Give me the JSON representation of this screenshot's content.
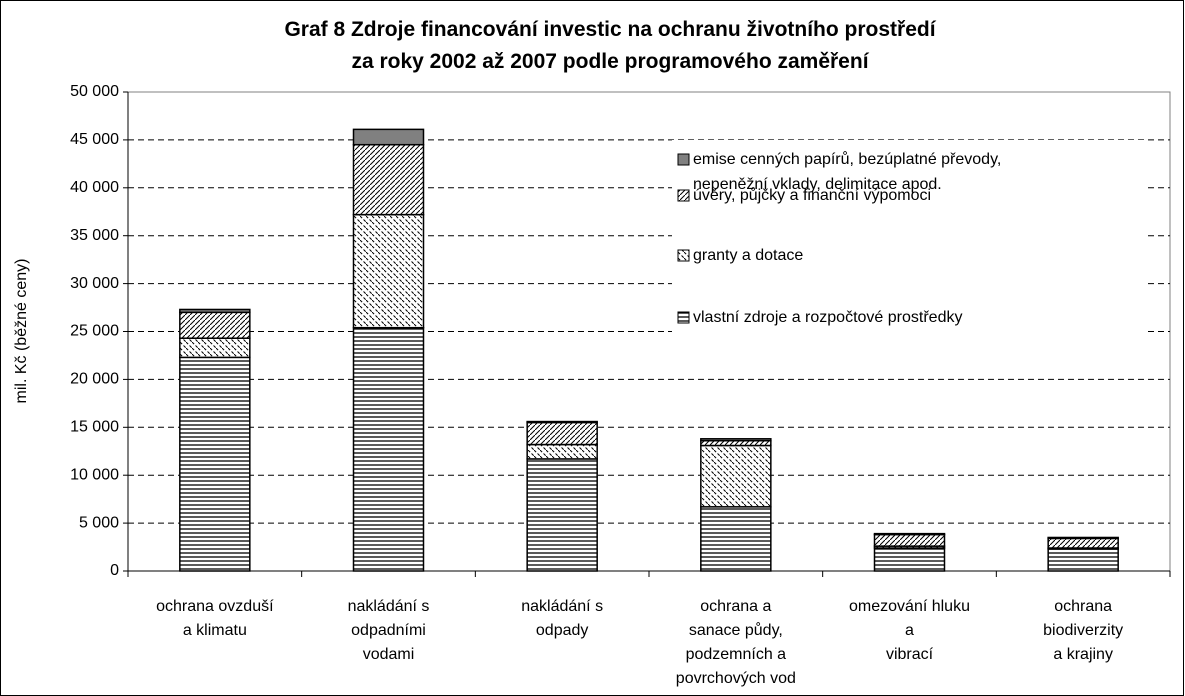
{
  "chart_data": {
    "type": "stacked_bar",
    "title": "Graf 8 Zdroje financování investic na ochranu životního prostředí\nza roky 2002 až 2007 podle programového zaměření",
    "y_label": "mil. Kč (běžné ceny)",
    "categories": [
      "ochrana ovzduší\na klimatu",
      "nakládání s\nodpadními\nvodami",
      "nakládání s\nodpady",
      "ochrana a\nsanace půdy,\npodzemních a\npovrchových vod",
      "omezování hluku\na\nvibrací",
      "ochrana\nbiodiverzity\na krajiny"
    ],
    "series": [
      {
        "name": "vlastní zdroje a rozpočtové prostředky",
        "color": "#000000",
        "pattern": "horizontal",
        "values": [
          22300,
          25400,
          11700,
          6700,
          2400,
          2300
        ]
      },
      {
        "name": "granty a dotace",
        "color": "#000000",
        "pattern": "backslash",
        "values": [
          2000,
          11800,
          1500,
          6400,
          200,
          100
        ]
      },
      {
        "name": "úvěry, půjčky a finanční výpomoci",
        "color": "#000000",
        "pattern": "slash",
        "values": [
          2700,
          7300,
          2300,
          500,
          1200,
          1000
        ]
      },
      {
        "name": "emise cenných papírů, bezúplatné převody,\nnepeněžní vklady, delimitace apod.",
        "color": "#808080",
        "pattern": "solid",
        "values": [
          300,
          1600,
          100,
          200,
          100,
          100
        ]
      }
    ],
    "ylim": [
      0,
      50000
    ],
    "yticks": [
      0,
      {
        "value": 5000,
        "label": "5 000"
      },
      {
        "value": 10000,
        "label": "10 000"
      },
      {
        "value": 15000,
        "label": "15 000"
      },
      {
        "value": 20000,
        "label": "20 000"
      },
      {
        "value": 25000,
        "label": "25 000"
      },
      {
        "value": 30000,
        "label": "30 000"
      },
      {
        "value": 35000,
        "label": "35 000"
      },
      {
        "value": 40000,
        "label": "40 000"
      },
      {
        "value": 45000,
        "label": "45 000"
      },
      {
        "value": 50000,
        "label": "50 000"
      }
    ],
    "grid": true,
    "legend": "upper right"
  }
}
